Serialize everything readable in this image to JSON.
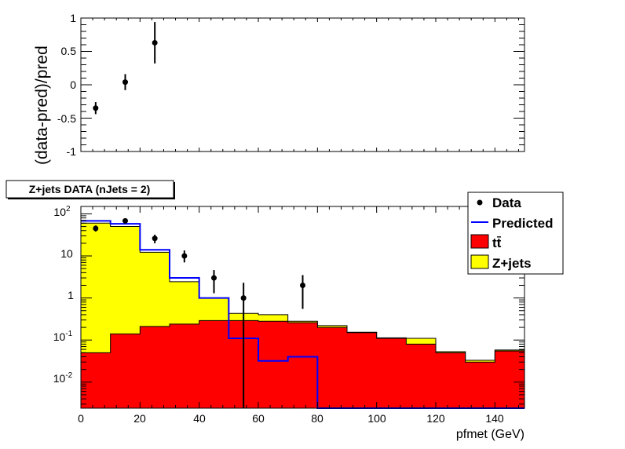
{
  "ratio_panel": {
    "ylabel": "(data-pred)/pred",
    "ylim": [
      -1,
      1
    ],
    "y_ticks": [
      "1",
      "0.5",
      "0",
      "-0.5",
      "-1"
    ]
  },
  "main_panel": {
    "title": "Z+jets DATA (nJets = 2)",
    "xlabel": "pfmet (GeV)",
    "x_ticks": [
      "0",
      "20",
      "40",
      "60",
      "80",
      "100",
      "120",
      "140"
    ],
    "y_ticks": [
      {
        "base": "10",
        "exp": "2"
      },
      {
        "base": "10",
        "exp": ""
      },
      {
        "base": "1",
        "exp": ""
      },
      {
        "base": "10",
        "exp": "-1"
      },
      {
        "base": "10",
        "exp": "-2"
      }
    ]
  },
  "legend": {
    "data": "Data",
    "predicted": "Predicted",
    "ttbar": "tt̄",
    "zjets": "Z+jets"
  },
  "colors": {
    "ttbar": "#ff0000",
    "zjets": "#ffff00",
    "predicted": "#0000ff",
    "data": "#000000"
  },
  "chart_data": [
    {
      "type": "scatter",
      "ylabel": "(data-pred)/pred",
      "xlim": [
        0,
        150
      ],
      "ylim": [
        -1,
        1
      ],
      "points": [
        {
          "x": 5,
          "y": -0.35,
          "err": 0.09
        },
        {
          "x": 15,
          "y": 0.04,
          "err": 0.12
        },
        {
          "x": 25,
          "y": 0.63,
          "err": 0.31
        }
      ]
    },
    {
      "type": "area",
      "title": "Z+jets DATA (nJets = 2)",
      "xlabel": "pfmet (GeV)",
      "xlim": [
        0,
        150
      ],
      "ylim": [
        0.0024,
        150
      ],
      "log_y": true,
      "bin_edges": [
        0,
        10,
        20,
        30,
        40,
        50,
        60,
        70,
        80,
        90,
        100,
        110,
        120,
        130,
        140,
        150
      ],
      "series": [
        {
          "name": "tt̄",
          "values": [
            0.05,
            0.14,
            0.21,
            0.24,
            0.29,
            0.29,
            0.28,
            0.26,
            0.2,
            0.15,
            0.11,
            0.08,
            0.05,
            0.03,
            0.055
          ]
        },
        {
          "name": "Z+jets",
          "values": [
            60,
            50,
            12,
            2.2,
            0.7,
            0.14,
            0.12,
            0.02,
            0.02,
            0.003,
            0.003,
            0.03,
            0.003,
            0.003,
            0.003
          ]
        },
        {
          "name": "Predicted",
          "values": [
            68,
            58,
            14,
            3.0,
            1.0,
            0.11,
            0.032,
            0.04,
            0.0024,
            0.0024,
            0.0024,
            0.0024,
            0.0024,
            0.0024,
            0.0024
          ]
        },
        {
          "name": "Data",
          "points": [
            {
              "x": 5,
              "y": 45,
              "lo": 38,
              "hi": 53
            },
            {
              "x": 15,
              "y": 68,
              "lo": 60,
              "hi": 77
            },
            {
              "x": 25,
              "y": 26,
              "lo": 20,
              "hi": 32
            },
            {
              "x": 35,
              "y": 10,
              "lo": 7,
              "hi": 13.5
            },
            {
              "x": 45,
              "y": 3,
              "lo": 1.3,
              "hi": 4.6
            },
            {
              "x": 55,
              "y": 1,
              "lo": 0.0024,
              "hi": 2.3
            },
            {
              "x": 75,
              "y": 2,
              "lo": 0.55,
              "hi": 3.5
            }
          ]
        }
      ]
    }
  ]
}
